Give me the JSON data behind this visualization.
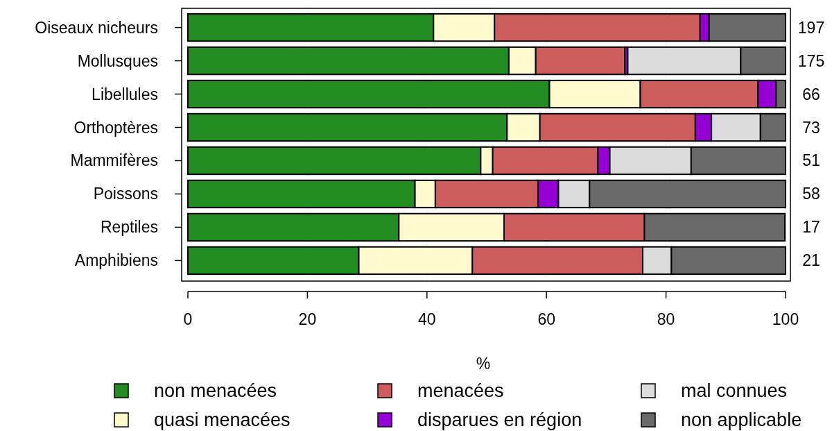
{
  "chart_data": {
    "type": "bar",
    "orientation": "horizontal",
    "stacked": true,
    "xlabel": "%",
    "categories": [
      "Oiseaux nicheurs",
      "Mollusques",
      "Libellules",
      "Orthoptères",
      "Mammifères",
      "Poissons",
      "Reptiles",
      "Amphibiens"
    ],
    "series": [
      {
        "name": "non menacées",
        "color": "#228b22",
        "values": [
          41.1,
          53.7,
          60.5,
          53.4,
          49.0,
          38.0,
          35.3,
          28.6
        ]
      },
      {
        "name": "quasi menacées",
        "color": "#fffacd",
        "values": [
          10.2,
          4.5,
          15.2,
          5.5,
          2.0,
          3.4,
          17.6,
          19.0
        ]
      },
      {
        "name": "menacées",
        "color": "#cd5c5c",
        "values": [
          34.4,
          14.9,
          19.7,
          26.0,
          17.6,
          17.2,
          23.5,
          28.5
        ]
      },
      {
        "name": "disparues en région",
        "color": "#9400d3",
        "values": [
          1.5,
          0.5,
          3.0,
          2.7,
          2.0,
          3.4,
          0,
          0
        ]
      },
      {
        "name": "mal connues",
        "color": "#dcdcdc",
        "values": [
          0,
          18.9,
          0,
          8.2,
          13.6,
          5.2,
          0,
          4.8
        ]
      },
      {
        "name": "non applicable",
        "color": "#696969",
        "values": [
          12.8,
          7.5,
          1.6,
          4.2,
          15.8,
          32.8,
          23.5,
          19.1
        ]
      }
    ],
    "xlim": [
      0,
      100
    ],
    "xticks": [
      0,
      20,
      40,
      60,
      80,
      100
    ],
    "grid": "x",
    "legend": "bottom",
    "annotations": [
      "197",
      "175",
      "66",
      "73",
      "51",
      "58",
      "17",
      "21"
    ]
  }
}
